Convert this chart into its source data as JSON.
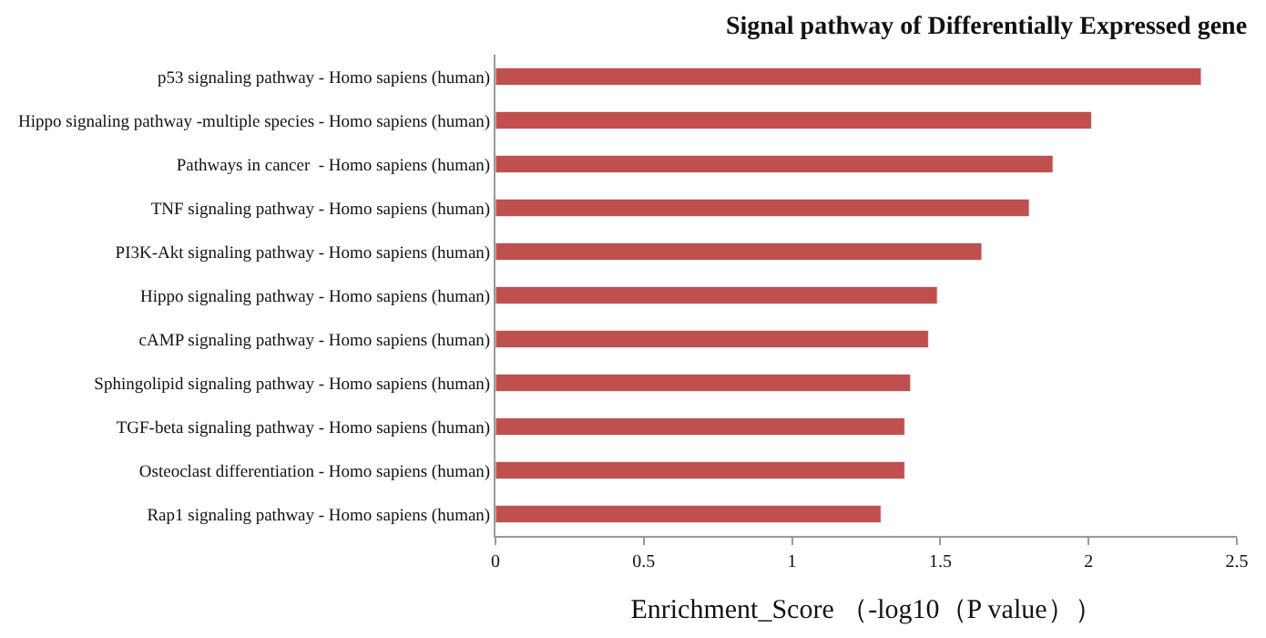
{
  "chart_data": {
    "type": "bar",
    "orientation": "horizontal",
    "title": "Signal pathway of Differentially Expressed gene",
    "xlabel": "Enrichment_Score （-log10（P value））",
    "categories": [
      "p53 signaling pathway - Homo sapiens (human)",
      "Hippo signaling pathway -multiple species - Homo sapiens (human)",
      "Pathways in cancer  - Homo sapiens (human)",
      "TNF signaling pathway - Homo sapiens (human)",
      "PI3K-Akt signaling pathway - Homo sapiens (human)",
      "Hippo signaling pathway - Homo sapiens (human)",
      "cAMP signaling pathway - Homo sapiens (human)",
      "Sphingolipid signaling pathway - Homo sapiens (human)",
      "TGF-beta signaling pathway - Homo sapiens (human)",
      "Osteoclast differentiation - Homo sapiens (human)",
      "Rap1 signaling pathway - Homo sapiens (human)"
    ],
    "values": [
      2.38,
      2.01,
      1.88,
      1.8,
      1.64,
      1.49,
      1.46,
      1.4,
      1.38,
      1.38,
      1.3
    ],
    "color": "#c0504d",
    "xlim": [
      0,
      2.5
    ],
    "xticks": [
      0,
      0.5,
      1,
      1.5,
      2,
      2.5
    ]
  }
}
